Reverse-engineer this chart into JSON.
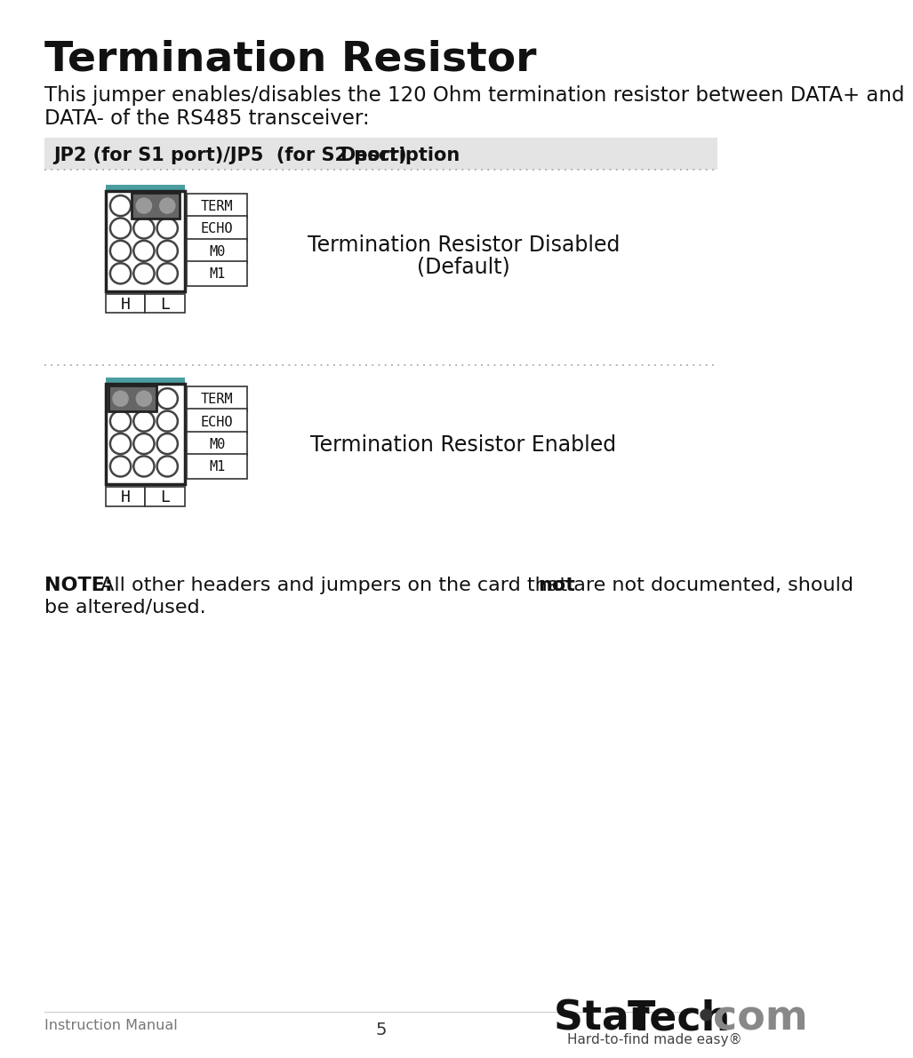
{
  "title": "Termination Resistor",
  "intro_line1": "This jumper enables/disables the 120 Ohm termination resistor between DATA+ and",
  "intro_line2": "DATA- of the RS485 transceiver:",
  "table_header_col1": "JP2 (for S1 port)/JP5  (for S2 port)",
  "table_header_col2": "Description",
  "row1_desc_line1": "Termination Resistor Disabled",
  "row1_desc_line2": "(Default)",
  "row2_desc": "Termination Resistor Enabled",
  "note_bold": "NOTE:",
  "note_mid": " All other headers and jumpers on the card that are not documented, should ",
  "note_bold2": "not",
  "note_end": "be altered/used.",
  "footer_left": "Instruction Manual",
  "footer_center": "5",
  "footer_tagline": "Hard-to-find made easy®",
  "bg_color": "#ffffff",
  "header_bg": "#e4e4e4",
  "teal_color": "#4a9ea0",
  "pin_border": "#444444",
  "jumper_fill": "#666666",
  "jumper_hole": "#999999",
  "text_color": "#111111",
  "gray_text": "#777777"
}
